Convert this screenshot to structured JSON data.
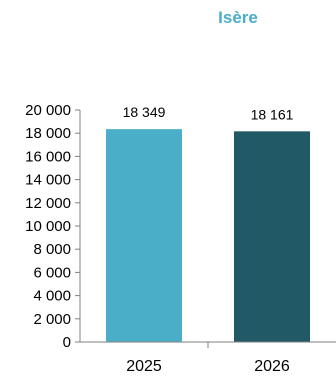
{
  "chart_data": {
    "type": "bar",
    "title": "Isère",
    "categories": [
      "2025",
      "2026"
    ],
    "values": [
      18349,
      18161
    ],
    "value_labels": [
      "18 349",
      "18 161"
    ],
    "colors": [
      "#4aaec8",
      "#215966"
    ],
    "title_color": "#4aaec8",
    "ylim": [
      0,
      20000
    ],
    "ytick_labels": [
      "0",
      "2 000",
      "4 000",
      "6 000",
      "8 000",
      "10 000",
      "12 000",
      "14 000",
      "16 000",
      "18 000",
      "20 000"
    ],
    "yticks": [
      0,
      2000,
      4000,
      6000,
      8000,
      10000,
      12000,
      14000,
      16000,
      18000,
      20000
    ],
    "xlabel": "",
    "ylabel": "",
    "grid": false,
    "legend": "none"
  }
}
